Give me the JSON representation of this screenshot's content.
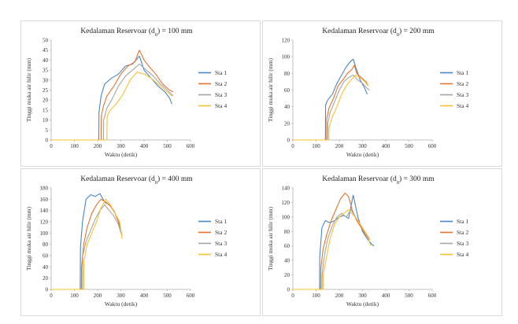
{
  "charts": [
    {
      "type": "line",
      "title": "Kedalaman Reservoar  (d0) = 100 mm",
      "title_parts": {
        "prefix": "Kedalaman Reservoar  (d",
        "sub": "0",
        "suffix": ") = 100 mm"
      },
      "xlabel": "Waktu (detik)",
      "ylabel": "Tinggi muka air hilir  (mm)",
      "xlim": [
        0,
        600
      ],
      "ylim": [
        0,
        50
      ],
      "xticks": [
        0,
        100,
        200,
        300,
        400,
        500,
        600
      ],
      "yticks": [
        0,
        5,
        10,
        15,
        20,
        25,
        30,
        35,
        40,
        45,
        50
      ],
      "legend_position": "right",
      "series": [
        {
          "name": "Sta 1",
          "color": "#4a86c5",
          "x": [
            0,
            205,
            206,
            215,
            230,
            260,
            290,
            320,
            350,
            380,
            400,
            430,
            460,
            490,
            510,
            520
          ],
          "y": [
            0,
            0,
            14,
            22,
            28,
            31,
            33,
            37,
            38,
            42,
            35,
            31,
            27,
            24,
            21,
            18
          ]
        },
        {
          "name": "Sta 2",
          "color": "#e8712d",
          "x": [
            0,
            215,
            216,
            225,
            240,
            270,
            300,
            330,
            360,
            380,
            400,
            420,
            450,
            480,
            510,
            525
          ],
          "y": [
            0,
            0,
            12,
            17,
            22,
            27,
            33,
            37,
            39,
            45,
            40,
            37,
            33,
            28,
            25,
            24
          ]
        },
        {
          "name": "Sta 3",
          "color": "#a5a5a5",
          "x": [
            0,
            225,
            226,
            240,
            260,
            290,
            320,
            350,
            380,
            410,
            440,
            470,
            500,
            525
          ],
          "y": [
            0,
            0,
            10,
            16,
            20,
            27,
            32,
            35,
            38,
            35,
            32,
            28,
            25,
            22
          ]
        },
        {
          "name": "Sta 4",
          "color": "#fbc02d",
          "x": [
            0,
            240,
            241,
            255,
            280,
            310,
            340,
            370,
            400,
            430,
            460,
            490,
            520
          ],
          "y": [
            0,
            0,
            12,
            15,
            18,
            23,
            30,
            34,
            33,
            31,
            28,
            25,
            22
          ]
        }
      ]
    },
    {
      "type": "line",
      "title": "Kedalaman Reservoar  (d0) = 200 mm",
      "title_parts": {
        "prefix": "Kedalaman Reservoar  (d",
        "sub": "0",
        "suffix": ") = 200 mm"
      },
      "xlabel": "Waktu (detik)",
      "ylabel": "Tinggi muka air hilir  (mm)",
      "xlim": [
        0,
        600
      ],
      "ylim": [
        0,
        120
      ],
      "xticks": [
        0,
        100,
        200,
        300,
        400,
        500,
        600
      ],
      "yticks": [
        0,
        20,
        40,
        60,
        80,
        100,
        120
      ],
      "legend_position": "right",
      "series": [
        {
          "name": "Sta 1",
          "color": "#4a86c5",
          "x": [
            0,
            140,
            141,
            150,
            170,
            190,
            210,
            230,
            250,
            260,
            270,
            290,
            310,
            320
          ],
          "y": [
            0,
            0,
            42,
            48,
            55,
            68,
            78,
            88,
            95,
            97,
            88,
            72,
            62,
            55
          ]
        },
        {
          "name": "Sta 2",
          "color": "#e8712d",
          "x": [
            0,
            145,
            146,
            155,
            175,
            195,
            215,
            235,
            255,
            265,
            275,
            295,
            315,
            325
          ],
          "y": [
            0,
            0,
            25,
            38,
            50,
            65,
            72,
            80,
            85,
            90,
            80,
            75,
            70,
            65
          ]
        },
        {
          "name": "Sta 3",
          "color": "#a5a5a5",
          "x": [
            0,
            150,
            151,
            160,
            180,
            200,
            220,
            240,
            260,
            280,
            300,
            320,
            330
          ],
          "y": [
            0,
            0,
            20,
            33,
            46,
            60,
            70,
            75,
            78,
            72,
            68,
            62,
            60
          ]
        },
        {
          "name": "Sta 4",
          "color": "#fbc02d",
          "x": [
            0,
            155,
            156,
            170,
            190,
            210,
            230,
            250,
            270,
            290,
            310,
            325
          ],
          "y": [
            0,
            0,
            15,
            28,
            40,
            55,
            65,
            72,
            78,
            75,
            70,
            65
          ]
        }
      ]
    },
    {
      "type": "line",
      "title": "Kedalaman Reservoar  (d0) = 400 mm",
      "title_parts": {
        "prefix": "Kedalaman Reservoar  (d",
        "sub": "0",
        "suffix": ") = 400 mm"
      },
      "xlabel": "Waktu (detik)",
      "ylabel": "Tinggi muka air hilir  (mm)",
      "xlim": [
        0,
        600
      ],
      "ylim": [
        0,
        180
      ],
      "xticks": [
        0,
        100,
        200,
        300,
        400,
        500,
        600
      ],
      "yticks": [
        0,
        20,
        40,
        60,
        80,
        100,
        120,
        140,
        160,
        180
      ],
      "legend_position": "right",
      "series": [
        {
          "name": "Sta 1",
          "color": "#4a86c5",
          "x": [
            0,
            125,
            126,
            135,
            150,
            170,
            190,
            210,
            230,
            250,
            270,
            290,
            300
          ],
          "y": [
            0,
            0,
            75,
            120,
            160,
            168,
            165,
            170,
            155,
            150,
            140,
            120,
            100
          ]
        },
        {
          "name": "Sta 2",
          "color": "#e8712d",
          "x": [
            0,
            130,
            131,
            140,
            155,
            175,
            195,
            215,
            235,
            255,
            275,
            295,
            305
          ],
          "y": [
            0,
            0,
            40,
            80,
            110,
            135,
            150,
            160,
            155,
            148,
            135,
            115,
            95
          ]
        },
        {
          "name": "Sta 3",
          "color": "#a5a5a5",
          "x": [
            0,
            135,
            136,
            150,
            170,
            190,
            210,
            230,
            250,
            270,
            290,
            300
          ],
          "y": [
            0,
            0,
            60,
            85,
            105,
            125,
            140,
            150,
            140,
            130,
            115,
            100
          ]
        },
        {
          "name": "Sta 4",
          "color": "#fbc02d",
          "x": [
            0,
            140,
            141,
            155,
            175,
            195,
            215,
            235,
            255,
            275,
            295,
            305
          ],
          "y": [
            0,
            0,
            50,
            80,
            100,
            120,
            145,
            160,
            150,
            135,
            120,
            90
          ]
        }
      ]
    },
    {
      "type": "line",
      "title": "Kedalaman Reservoar  (d0) = 300 mm",
      "title_parts": {
        "prefix": "Kedalaman Reservoar  (d",
        "sub": "0",
        "suffix": ") = 300 mm"
      },
      "xlabel": "Waktu (detik)",
      "ylabel": "Tinggi muka air hilir  (mm)",
      "xlim": [
        0,
        600
      ],
      "ylim": [
        0,
        140
      ],
      "xticks": [
        0,
        100,
        200,
        300,
        400,
        500,
        600
      ],
      "yticks": [
        0,
        20,
        40,
        60,
        80,
        100,
        120,
        140
      ],
      "legend_position": "right",
      "series": [
        {
          "name": "Sta 1",
          "color": "#4a86c5",
          "x": [
            0,
            115,
            116,
            125,
            140,
            160,
            180,
            200,
            220,
            240,
            260,
            280,
            300,
            320,
            340,
            350
          ],
          "y": [
            0,
            0,
            45,
            85,
            95,
            92,
            95,
            100,
            102,
            98,
            130,
            100,
            80,
            70,
            62,
            60
          ]
        },
        {
          "name": "Sta 2",
          "color": "#e8712d",
          "x": [
            0,
            120,
            121,
            130,
            145,
            165,
            185,
            205,
            225,
            240,
            255,
            275,
            295,
            315,
            330
          ],
          "y": [
            0,
            0,
            30,
            55,
            75,
            95,
            110,
            125,
            133,
            128,
            110,
            95,
            85,
            75,
            68
          ]
        },
        {
          "name": "Sta 3",
          "color": "#a5a5a5",
          "x": [
            0,
            125,
            126,
            135,
            150,
            170,
            190,
            210,
            230,
            250,
            270,
            290,
            310,
            330
          ],
          "y": [
            0,
            0,
            20,
            45,
            70,
            88,
            100,
            105,
            100,
            110,
            100,
            90,
            80,
            70
          ]
        },
        {
          "name": "Sta 4",
          "color": "#fbc02d",
          "x": [
            0,
            130,
            131,
            145,
            160,
            180,
            200,
            220,
            240,
            260,
            280,
            300,
            320,
            335
          ],
          "y": [
            0,
            0,
            20,
            45,
            70,
            90,
            100,
            105,
            110,
            103,
            95,
            85,
            75,
            60
          ]
        }
      ]
    }
  ]
}
